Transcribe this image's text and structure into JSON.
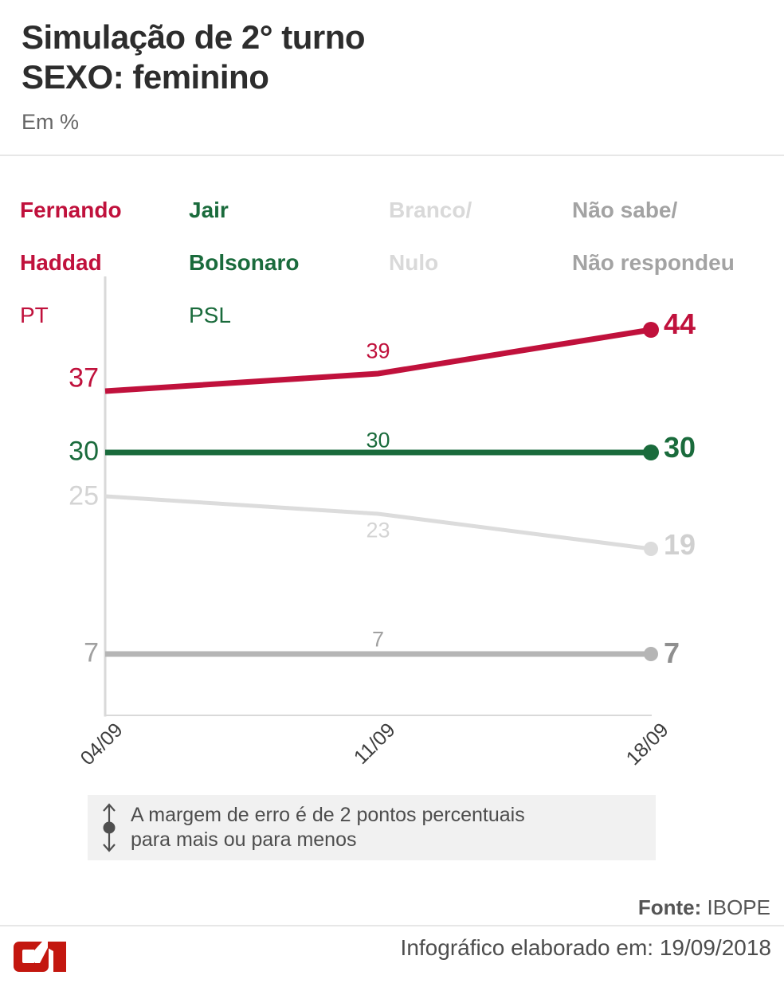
{
  "title": {
    "line1": "Simulação de 2° turno",
    "line2": "SEXO: feminino"
  },
  "unit_label": "Em %",
  "legend": {
    "items": [
      {
        "name_line1": "Fernando",
        "name_line2": "Haddad",
        "party": "PT",
        "color": "#c0113c"
      },
      {
        "name_line1": "Jair",
        "name_line2": "Bolsonaro",
        "party": "PSL",
        "color": "#1a6b3c"
      },
      {
        "name_line1": "Branco/",
        "name_line2": "Nulo",
        "party": "",
        "color": "#d9d9d9"
      },
      {
        "name_line1": "Não sabe/",
        "name_line2": "Não respondeu",
        "party": "",
        "color": "#a3a3a3"
      }
    ]
  },
  "chart_data": {
    "type": "line",
    "title": "Simulação de 2° turno - SEXO: feminino (Em %)",
    "x": [
      "04/09",
      "11/09",
      "18/09"
    ],
    "xlabel": "",
    "ylabel": "Em %",
    "ylim": [
      0,
      50
    ],
    "grid": false,
    "legend_position": "top",
    "axis_color": "#d9d9d9",
    "series": [
      {
        "name": "Fernando Haddad (PT)",
        "values": [
          37,
          39,
          44
        ],
        "color": "#c0113c",
        "label_color": "#c0113c",
        "end_label_color": "#c0113c",
        "stroke_width": 7,
        "dot_radius": 10
      },
      {
        "name": "Jair Bolsonaro (PSL)",
        "values": [
          30,
          30,
          30
        ],
        "color": "#1a6b3c",
        "label_color": "#1a6b3c",
        "end_label_color": "#1a6b3c",
        "stroke_width": 7,
        "dot_radius": 10
      },
      {
        "name": "Branco/Nulo",
        "values": [
          25,
          23,
          19
        ],
        "color": "#dcdcdc",
        "label_color": "#d4d4d4",
        "end_label_color": "#d0d0d0",
        "stroke_width": 5,
        "dot_radius": 9
      },
      {
        "name": "Não sabe/Não respondeu",
        "values": [
          7,
          7,
          7
        ],
        "color": "#b5b5b5",
        "label_color": "#a0a0a0",
        "end_label_color": "#8f8f8f",
        "stroke_width": 7,
        "dot_radius": 9
      }
    ]
  },
  "note": {
    "line1": "A margem de erro é de 2 pontos percentuais",
    "line2": "para mais ou para menos"
  },
  "source": {
    "label": "Fonte:",
    "value": "IBOPE"
  },
  "footer": {
    "credit": "Infográfico elaborado em: 19/09/2018",
    "logo_text": "G1"
  }
}
